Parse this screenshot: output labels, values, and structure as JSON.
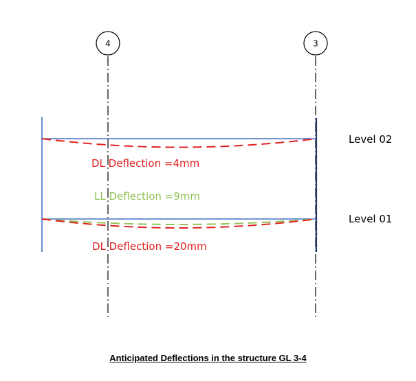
{
  "grid_lines": [
    {
      "id": "4",
      "label": "4"
    },
    {
      "id": "3",
      "label": "3"
    }
  ],
  "levels": {
    "level02": "Level 02",
    "level01": "Level 01"
  },
  "deflections": {
    "dl_level02": {
      "label": "DL Deflection =4mm",
      "color": "#e02020"
    },
    "ll_level01": {
      "label": "LL Deflection =9mm",
      "color": "#92c35a"
    },
    "dl_level01": {
      "label": "DL Deflection =20mm",
      "color": "#e02020"
    }
  },
  "colors": {
    "beam": "#4472c4",
    "dl": "#e02020",
    "ll": "#92c35a",
    "grid": "#000000"
  },
  "caption": "Anticipated Deflections in the structure GL 3-4"
}
